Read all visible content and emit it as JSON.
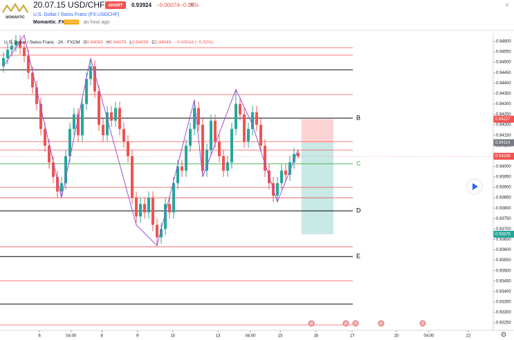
{
  "header": {
    "title": "20.07.15 USD/CHF",
    "badge": "SHORT",
    "price": "0.93924",
    "change": "−0.00074",
    "change_pct": "−0.08%",
    "symbol": "U.S. Dollar / Swiss Franc (FX:USDCHF)",
    "author": "Momantic_FX",
    "author_badge": "PREMIUM",
    "time": "an hour ago",
    "logo": "MOMANTIC"
  },
  "chart_data": {
    "type": "candlestick",
    "legend": {
      "symbol": "U.S. Dollar / Swiss Franc · 2h · FXCM",
      "o": "O",
      "h": "H",
      "l": "L",
      "c": "C",
      "change": "−0.00016 (−0.02%)"
    },
    "open": [
      0.9448,
      0.9452,
      0.9456,
      0.9458,
      0.946,
      0.9457,
      0.9453,
      0.9445,
      0.9438,
      0.943,
      0.9418,
      0.941,
      0.9402,
      0.9395,
      0.9388,
      0.9392,
      0.9405,
      0.9418,
      0.9425,
      0.9415,
      0.943,
      0.9442,
      0.9448,
      0.9436,
      0.942,
      0.9415,
      0.9426,
      0.9422,
      0.9428,
      0.9418,
      0.9412,
      0.9405,
      0.9385,
      0.9376,
      0.9382,
      0.9378,
      0.9385,
      0.9372,
      0.9366,
      0.937,
      0.9382,
      0.9378,
      0.9392,
      0.94,
      0.9398,
      0.941,
      0.9418,
      0.9428,
      0.942,
      0.9398,
      0.9408,
      0.9422,
      0.9412,
      0.9405,
      0.9398,
      0.9402,
      0.9418,
      0.943,
      0.9425,
      0.9412,
      0.9418,
      0.9426,
      0.942,
      0.941,
      0.9398,
      0.9392,
      0.9386,
      0.9392,
      0.9398,
      0.9396,
      0.9402,
      0.94065
    ],
    "high": [
      0.9455,
      0.9459,
      0.9461,
      0.9463,
      0.9463,
      0.946,
      0.9456,
      0.9448,
      0.9441,
      0.9433,
      0.9421,
      0.9413,
      0.9405,
      0.9398,
      0.9395,
      0.9408,
      0.9421,
      0.9428,
      0.9428,
      0.9433,
      0.9445,
      0.9452,
      0.9451,
      0.9439,
      0.9423,
      0.9429,
      0.9429,
      0.9431,
      0.9431,
      0.9421,
      0.9415,
      0.9408,
      0.9388,
      0.9385,
      0.9385,
      0.9388,
      0.9388,
      0.9375,
      0.9373,
      0.9385,
      0.9385,
      0.9395,
      0.9403,
      0.9403,
      0.9413,
      0.9421,
      0.9432,
      0.9431,
      0.9423,
      0.9411,
      0.9425,
      0.9425,
      0.9415,
      0.9408,
      0.9405,
      0.9421,
      0.9437,
      0.9433,
      0.9428,
      0.9421,
      0.9429,
      0.9429,
      0.9423,
      0.9413,
      0.9401,
      0.9395,
      0.9395,
      0.9401,
      0.9401,
      0.9405,
      0.9409,
      0.94079
    ],
    "low": [
      0.9445,
      0.9449,
      0.9453,
      0.9455,
      0.9454,
      0.945,
      0.9442,
      0.9435,
      0.9427,
      0.9415,
      0.9407,
      0.9399,
      0.9392,
      0.9385,
      0.9385,
      0.9389,
      0.9402,
      0.9415,
      0.9412,
      0.9412,
      0.9427,
      0.9439,
      0.9433,
      0.9417,
      0.9412,
      0.9412,
      0.9419,
      0.9419,
      0.9415,
      0.9409,
      0.9402,
      0.9382,
      0.9373,
      0.9373,
      0.9375,
      0.9375,
      0.9369,
      0.9362,
      0.9363,
      0.9367,
      0.9375,
      0.9375,
      0.9389,
      0.9395,
      0.9395,
      0.9407,
      0.9415,
      0.9417,
      0.9395,
      0.9395,
      0.9405,
      0.9409,
      0.9402,
      0.9395,
      0.9395,
      0.9399,
      0.9415,
      0.9422,
      0.9409,
      0.9409,
      0.9415,
      0.9417,
      0.9407,
      0.9395,
      0.9389,
      0.9383,
      0.9383,
      0.9389,
      0.9393,
      0.9393,
      0.9399,
      0.94039
    ],
    "close": [
      0.9452,
      0.9456,
      0.9458,
      0.946,
      0.9457,
      0.9453,
      0.9445,
      0.9438,
      0.943,
      0.9418,
      0.941,
      0.9402,
      0.9395,
      0.9388,
      0.9392,
      0.9405,
      0.9418,
      0.9425,
      0.9415,
      0.943,
      0.9442,
      0.9448,
      0.9436,
      0.942,
      0.9415,
      0.9426,
      0.9422,
      0.9428,
      0.9418,
      0.9412,
      0.9405,
      0.9385,
      0.9376,
      0.9382,
      0.9378,
      0.9385,
      0.9372,
      0.9366,
      0.937,
      0.9382,
      0.9378,
      0.9392,
      0.94,
      0.9398,
      0.941,
      0.9418,
      0.9428,
      0.942,
      0.9398,
      0.9408,
      0.9422,
      0.9412,
      0.9405,
      0.9398,
      0.9402,
      0.9418,
      0.943,
      0.9425,
      0.9412,
      0.9418,
      0.9426,
      0.942,
      0.941,
      0.9398,
      0.9392,
      0.9386,
      0.9392,
      0.9398,
      0.9396,
      0.9402,
      0.9406,
      0.94049
    ],
    "up_color": "#26a69a",
    "down_color": "#ef5350",
    "zigzag": {
      "color": "#9c4dd9",
      "x": [
        0,
        5,
        14,
        21,
        32,
        37,
        46,
        48,
        56,
        60,
        66,
        71
      ],
      "values": [
        0.9448,
        0.9463,
        0.9385,
        0.9452,
        0.9372,
        0.9362,
        0.9432,
        0.9395,
        0.9437,
        0.942,
        0.9383,
        0.9408
      ]
    },
    "black_levels": [
      0.94464,
      0.94013,
      0.9334
    ],
    "red_levels": [
      0.9457,
      0.94534,
      0.94345,
      0.94119,
      0.94079,
      0.939,
      0.9385,
      0.93615,
      0.93452,
      0.9324
    ],
    "level_labels": [
      {
        "label": "B",
        "value": 0.94232,
        "color": "#000000"
      },
      {
        "label": "C",
        "value": 0.94013,
        "color": "#4caf50"
      },
      {
        "label": "D",
        "value": 0.93787,
        "color": "#000000"
      },
      {
        "label": "E",
        "value": 0.93568,
        "color": "#000000"
      }
    ],
    "position": {
      "entry": 0.94114,
      "stop": 0.94227,
      "target": 0.93675,
      "x": [
        71.8,
        79.5
      ]
    },
    "xlim": [
      -0.83,
      118
    ],
    "ylim": [
      0.93214,
      0.94633
    ],
    "xticks": [
      {
        "value": 8.7,
        "label": "6"
      },
      {
        "value": 16.3,
        "label": "04:00"
      },
      {
        "value": 23.7,
        "label": "8"
      },
      {
        "value": 32.3,
        "label": "9"
      },
      {
        "value": 40.8,
        "label": "10"
      },
      {
        "value": 51.7,
        "label": "13"
      },
      {
        "value": 59.5,
        "label": "04:00"
      },
      {
        "value": 66.7,
        "label": "15"
      },
      {
        "value": 75.3,
        "label": "16"
      },
      {
        "value": 84,
        "label": "17"
      },
      {
        "value": 94.7,
        "label": "20"
      },
      {
        "value": 102.5,
        "label": "04:00"
      },
      {
        "value": 112,
        "label": "22"
      }
    ],
    "yticks": [
      {
        "value": 0.946,
        "label": "0.94600"
      },
      {
        "value": 0.9455,
        "label": "0.94550"
      },
      {
        "value": 0.945,
        "label": "0.94500"
      },
      {
        "value": 0.9445,
        "label": "0.94450"
      },
      {
        "value": 0.944,
        "label": "0.94400"
      },
      {
        "value": 0.9435,
        "label": "0.94350"
      },
      {
        "value": 0.943,
        "label": "0.94300"
      },
      {
        "value": 0.9425,
        "label": "0.94250"
      },
      {
        "value": 0.942,
        "label": "0.94200"
      },
      {
        "value": 0.9415,
        "label": "0.94150"
      },
      {
        "value": 0.941,
        "label": "0.94100"
      },
      {
        "value": 0.9405,
        "label": "0.94050"
      },
      {
        "value": 0.94,
        "label": "0.94000"
      },
      {
        "value": 0.9395,
        "label": "0.93950"
      },
      {
        "value": 0.939,
        "label": "0.93900"
      },
      {
        "value": 0.9385,
        "label": "0.93850"
      },
      {
        "value": 0.938,
        "label": "0.93800"
      },
      {
        "value": 0.9375,
        "label": "0.93750"
      },
      {
        "value": 0.937,
        "label": "0.93700"
      },
      {
        "value": 0.9365,
        "label": "0.93650"
      },
      {
        "value": 0.936,
        "label": "0.93600"
      },
      {
        "value": 0.9355,
        "label": "0.93550"
      },
      {
        "value": 0.935,
        "label": "0.93500"
      },
      {
        "value": 0.9345,
        "label": "0.93450"
      },
      {
        "value": 0.934,
        "label": "0.93400"
      },
      {
        "value": 0.9335,
        "label": "0.93350"
      },
      {
        "value": 0.933,
        "label": "0.93300"
      },
      {
        "value": 0.9325,
        "label": "0.93250"
      }
    ]
  }
}
